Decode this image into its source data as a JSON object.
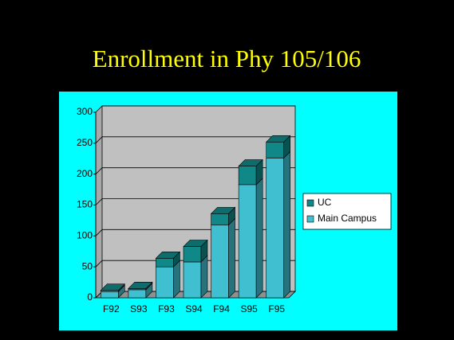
{
  "chart_data": {
    "type": "bar",
    "stacked": true,
    "title": "Enrollment in Phy 105/106",
    "categories": [
      "F92",
      "S93",
      "F93",
      "S94",
      "F94",
      "S95",
      "F95"
    ],
    "series": [
      {
        "name": "Main Campus",
        "color": "#40bfd0",
        "values": [
          10,
          13,
          50,
          58,
          118,
          183,
          226
        ]
      },
      {
        "name": "UC",
        "color": "#108888",
        "values": [
          2,
          2,
          14,
          25,
          18,
          30,
          26
        ]
      }
    ],
    "ylim": [
      0,
      300
    ],
    "yticks": [
      0,
      50,
      100,
      150,
      200,
      250,
      300
    ],
    "grid": true
  }
}
